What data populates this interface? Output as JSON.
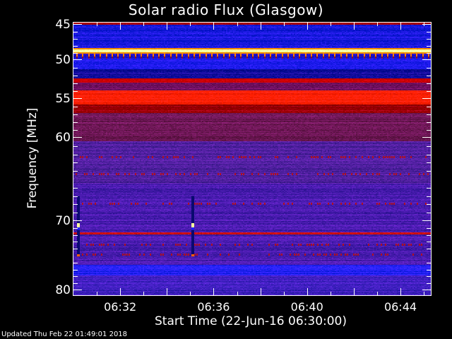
{
  "chart_data": {
    "type": "heatmap",
    "title": "Solar radio Flux (Glasgow)",
    "xlabel": "Start Time (22-Jun-16 06:30:00)",
    "ylabel": "Frequency [MHz]",
    "x_ticks": [
      {
        "label": "06:32",
        "minutes": 2
      },
      {
        "label": "06:36",
        "minutes": 6
      },
      {
        "label": "06:40",
        "minutes": 10
      },
      {
        "label": "06:44",
        "minutes": 14
      }
    ],
    "x_range_minutes": [
      0,
      15.3
    ],
    "y_ticks": [
      {
        "label": "45",
        "mhz": 45
      },
      {
        "label": "50",
        "mhz": 50
      },
      {
        "label": "55",
        "mhz": 55
      },
      {
        "label": "60",
        "mhz": 60
      },
      {
        "label": "70",
        "mhz": 70
      },
      {
        "label": "80",
        "mhz": 80
      }
    ],
    "y_range_mhz": [
      44.7,
      80.7
    ],
    "y_axis_inverted": true,
    "colormap": "blue-purple-red-yellow-white",
    "bands_mhz": [
      {
        "from": 44.7,
        "to": 45.0,
        "color": "#b00010"
      },
      {
        "from": 45.0,
        "to": 48.3,
        "color": "#1a1ae0"
      },
      {
        "from": 48.3,
        "to": 48.5,
        "color": "#ff9000"
      },
      {
        "from": 48.5,
        "to": 48.9,
        "color": "#ffffa0"
      },
      {
        "from": 48.9,
        "to": 49.1,
        "color": "#ff9000"
      },
      {
        "from": 49.1,
        "to": 49.6,
        "color": "#2010c0"
      },
      {
        "from": 49.6,
        "to": 51.2,
        "color": "#1a1ae8"
      },
      {
        "from": 51.2,
        "to": 52.4,
        "color": "#0c0c98"
      },
      {
        "from": 52.4,
        "to": 52.9,
        "color": "#d00000"
      },
      {
        "from": 52.9,
        "to": 53.9,
        "color": "#701060"
      },
      {
        "from": 53.9,
        "to": 55.7,
        "color": "#ff2000"
      },
      {
        "from": 55.7,
        "to": 56.8,
        "color": "#a00008"
      },
      {
        "from": 56.8,
        "to": 60.4,
        "color": "#701858"
      },
      {
        "from": 60.4,
        "to": 65.5,
        "color": "#5020a0"
      },
      {
        "from": 65.5,
        "to": 71.6,
        "color": "#4a1cb0"
      },
      {
        "from": 71.6,
        "to": 71.9,
        "color": "#d01010"
      },
      {
        "from": 71.9,
        "to": 76.3,
        "color": "#4a1cb0"
      },
      {
        "from": 76.3,
        "to": 77.9,
        "color": "#2020f0"
      },
      {
        "from": 77.9,
        "to": 80.7,
        "color": "#4020c0"
      }
    ],
    "bursts": [
      {
        "minutes": 0.2,
        "from_mhz": 67.0,
        "to_mhz": 74.8
      },
      {
        "minutes": 5.1,
        "from_mhz": 67.0,
        "to_mhz": 74.8
      }
    ]
  },
  "footer": {
    "updated": "Updated Thu Feb 22 01:49:01 2018"
  }
}
